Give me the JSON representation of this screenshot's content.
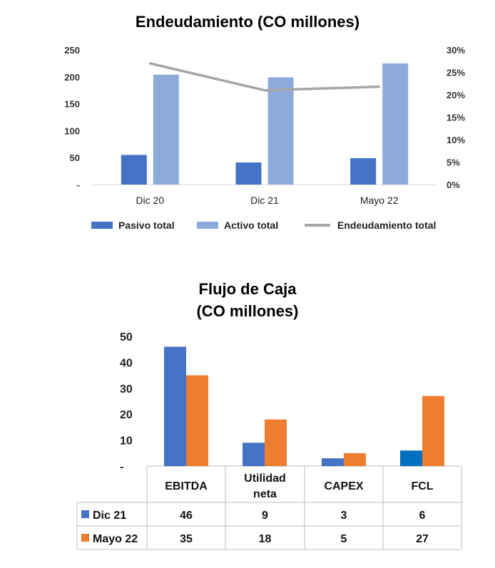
{
  "chart_data": [
    {
      "type": "bar",
      "title": "Endeudamiento (CO millones)",
      "categories": [
        "Dic 20",
        "Dic 21",
        "Mayo 22"
      ],
      "ylim": [
        0,
        250
      ],
      "y_ticks": [
        "-",
        "50",
        "100",
        "150",
        "200",
        "250"
      ],
      "y2lim": [
        0,
        30
      ],
      "y2_ticks": [
        "0%",
        "5%",
        "10%",
        "15%",
        "20%",
        "25%",
        "30%"
      ],
      "series": [
        {
          "name": "Pasivo total",
          "type": "bar",
          "axis": "left",
          "color": "#4472c4",
          "values": [
            55,
            41,
            49
          ]
        },
        {
          "name": "Activo total",
          "type": "bar",
          "axis": "left",
          "color": "#8eaadb",
          "values": [
            204,
            199,
            225
          ]
        },
        {
          "name": "Endeudamiento total",
          "type": "line",
          "axis": "right",
          "color": "#a6a6a6",
          "values": [
            27,
            21,
            21.8
          ]
        }
      ],
      "grid": false,
      "legend": "bottom"
    },
    {
      "type": "bar",
      "title": [
        "Flujo de Caja",
        "(CO millones)"
      ],
      "categories": [
        "EBITDA",
        "Utilidad neta",
        "CAPEX",
        "FCL"
      ],
      "category_lines": [
        [
          "EBITDA"
        ],
        [
          "Utilidad",
          "neta"
        ],
        [
          "CAPEX"
        ],
        [
          "FCL"
        ]
      ],
      "ylim": [
        0,
        50
      ],
      "y_ticks": [
        "-",
        "10",
        "20",
        "30",
        "40",
        "50"
      ],
      "series": [
        {
          "name": "Dic 21",
          "color": "#4472c4",
          "values": [
            46,
            9,
            3,
            6
          ]
        },
        {
          "name": "Mayo 22",
          "color": "#ed7d31",
          "values": [
            35,
            18,
            5,
            27
          ]
        }
      ],
      "grid": false,
      "legend": "data table"
    }
  ]
}
